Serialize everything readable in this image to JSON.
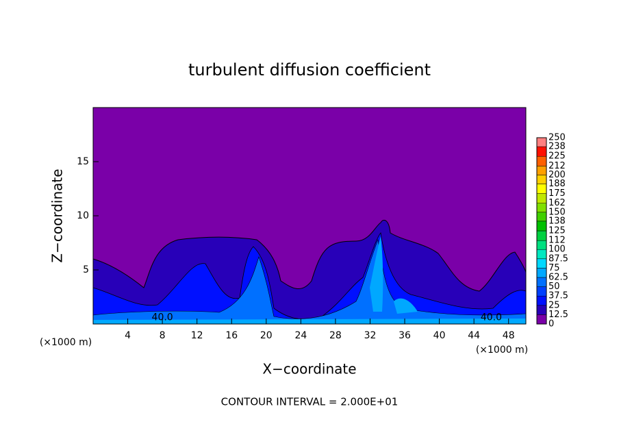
{
  "chart_data": {
    "type": "contour",
    "title": "turbulent diffusion coefficient",
    "xlabel": "X−coordinate",
    "ylabel": "Z−coordinate",
    "x_unit": "(×1000 m)",
    "footer": "CONTOUR INTERVAL = 2.000E+01",
    "xlim": [
      0,
      50
    ],
    "ylim": [
      0,
      20
    ],
    "xticks": [
      4,
      8,
      12,
      16,
      20,
      24,
      28,
      32,
      36,
      40,
      44,
      48
    ],
    "yticks": [
      5,
      10,
      15
    ],
    "contour_labels": [
      "40.0",
      "40.0"
    ],
    "background_color": "#7a00a8",
    "colorbar": {
      "lim": [
        0,
        250
      ],
      "ticks": [
        0,
        12.5,
        25,
        37.5,
        50,
        62.5,
        75,
        87.5,
        100,
        112,
        125,
        138,
        150,
        162,
        175,
        188,
        200,
        212,
        225,
        238,
        250
      ],
      "colors": [
        "#7a00a8",
        "#2800b8",
        "#0010ff",
        "#0040ff",
        "#0070ff",
        "#00a8ff",
        "#00d8ff",
        "#00e8c0",
        "#00e080",
        "#00d040",
        "#00c000",
        "#40d000",
        "#80e000",
        "#c0e800",
        "#ffff00",
        "#ffd000",
        "#ffa000",
        "#ff6000",
        "#ff1000",
        "#ff8080"
      ]
    }
  }
}
